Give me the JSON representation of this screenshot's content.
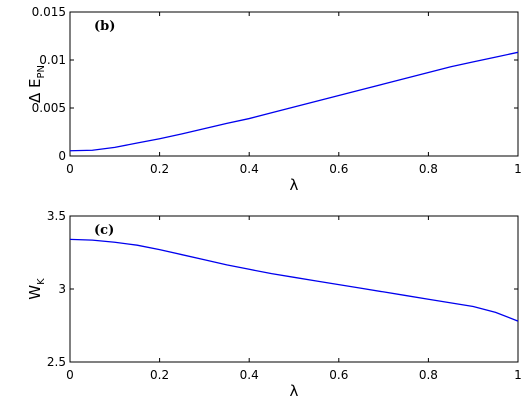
{
  "chart_data": [
    {
      "type": "line",
      "panel_label": "(b)",
      "xlabel": "λ",
      "ylabel": {
        "main": "Δ E",
        "subscript": "PN"
      },
      "xlim": [
        0,
        1
      ],
      "ylim": [
        0,
        0.015
      ],
      "xticks": [
        "0",
        "0.2",
        "0.4",
        "0.6",
        "0.8",
        "1"
      ],
      "yticks": [
        "0",
        "0.005",
        "0.01",
        "0.015"
      ],
      "grid": false,
      "series": [
        {
          "color": "#0000ee",
          "x": [
            0,
            0.05,
            0.1,
            0.15,
            0.2,
            0.25,
            0.3,
            0.35,
            0.4,
            0.45,
            0.5,
            0.55,
            0.6,
            0.65,
            0.7,
            0.75,
            0.8,
            0.85,
            0.9,
            0.95,
            1.0
          ],
          "y": [
            0.00055,
            0.0006,
            0.0009,
            0.00135,
            0.0018,
            0.0023,
            0.00285,
            0.0034,
            0.0039,
            0.0045,
            0.0051,
            0.0057,
            0.0063,
            0.0069,
            0.0075,
            0.0081,
            0.0087,
            0.0093,
            0.0098,
            0.0103,
            0.0108
          ]
        }
      ]
    },
    {
      "type": "line",
      "panel_label": "(c)",
      "xlabel": "λ",
      "ylabel": {
        "main": "W",
        "subscript": "K"
      },
      "xlim": [
        0,
        1
      ],
      "ylim": [
        2.5,
        3.5
      ],
      "xticks": [
        "0",
        "0.2",
        "0.4",
        "0.6",
        "0.8",
        "1"
      ],
      "yticks": [
        "2.5",
        "3",
        "3.5"
      ],
      "grid": false,
      "series": [
        {
          "color": "#0000ee",
          "x": [
            0,
            0.05,
            0.1,
            0.15,
            0.2,
            0.25,
            0.3,
            0.35,
            0.4,
            0.45,
            0.5,
            0.55,
            0.6,
            0.65,
            0.7,
            0.75,
            0.8,
            0.85,
            0.9,
            0.95,
            1.0
          ],
          "y": [
            3.34,
            3.335,
            3.32,
            3.3,
            3.27,
            3.235,
            3.2,
            3.165,
            3.135,
            3.105,
            3.08,
            3.055,
            3.03,
            3.005,
            2.98,
            2.955,
            2.93,
            2.905,
            2.88,
            2.84,
            2.78
          ]
        }
      ]
    }
  ]
}
